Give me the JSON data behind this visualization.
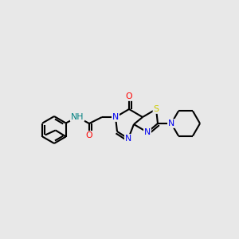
{
  "bg_color": "#e8e8e8",
  "atom_colors": {
    "C": "#000000",
    "N": "#0000ee",
    "O": "#ff0000",
    "S": "#cccc00",
    "H": "#008080"
  },
  "bond_color": "#000000",
  "fig_size": [
    3.0,
    3.0
  ],
  "dpi": 100
}
